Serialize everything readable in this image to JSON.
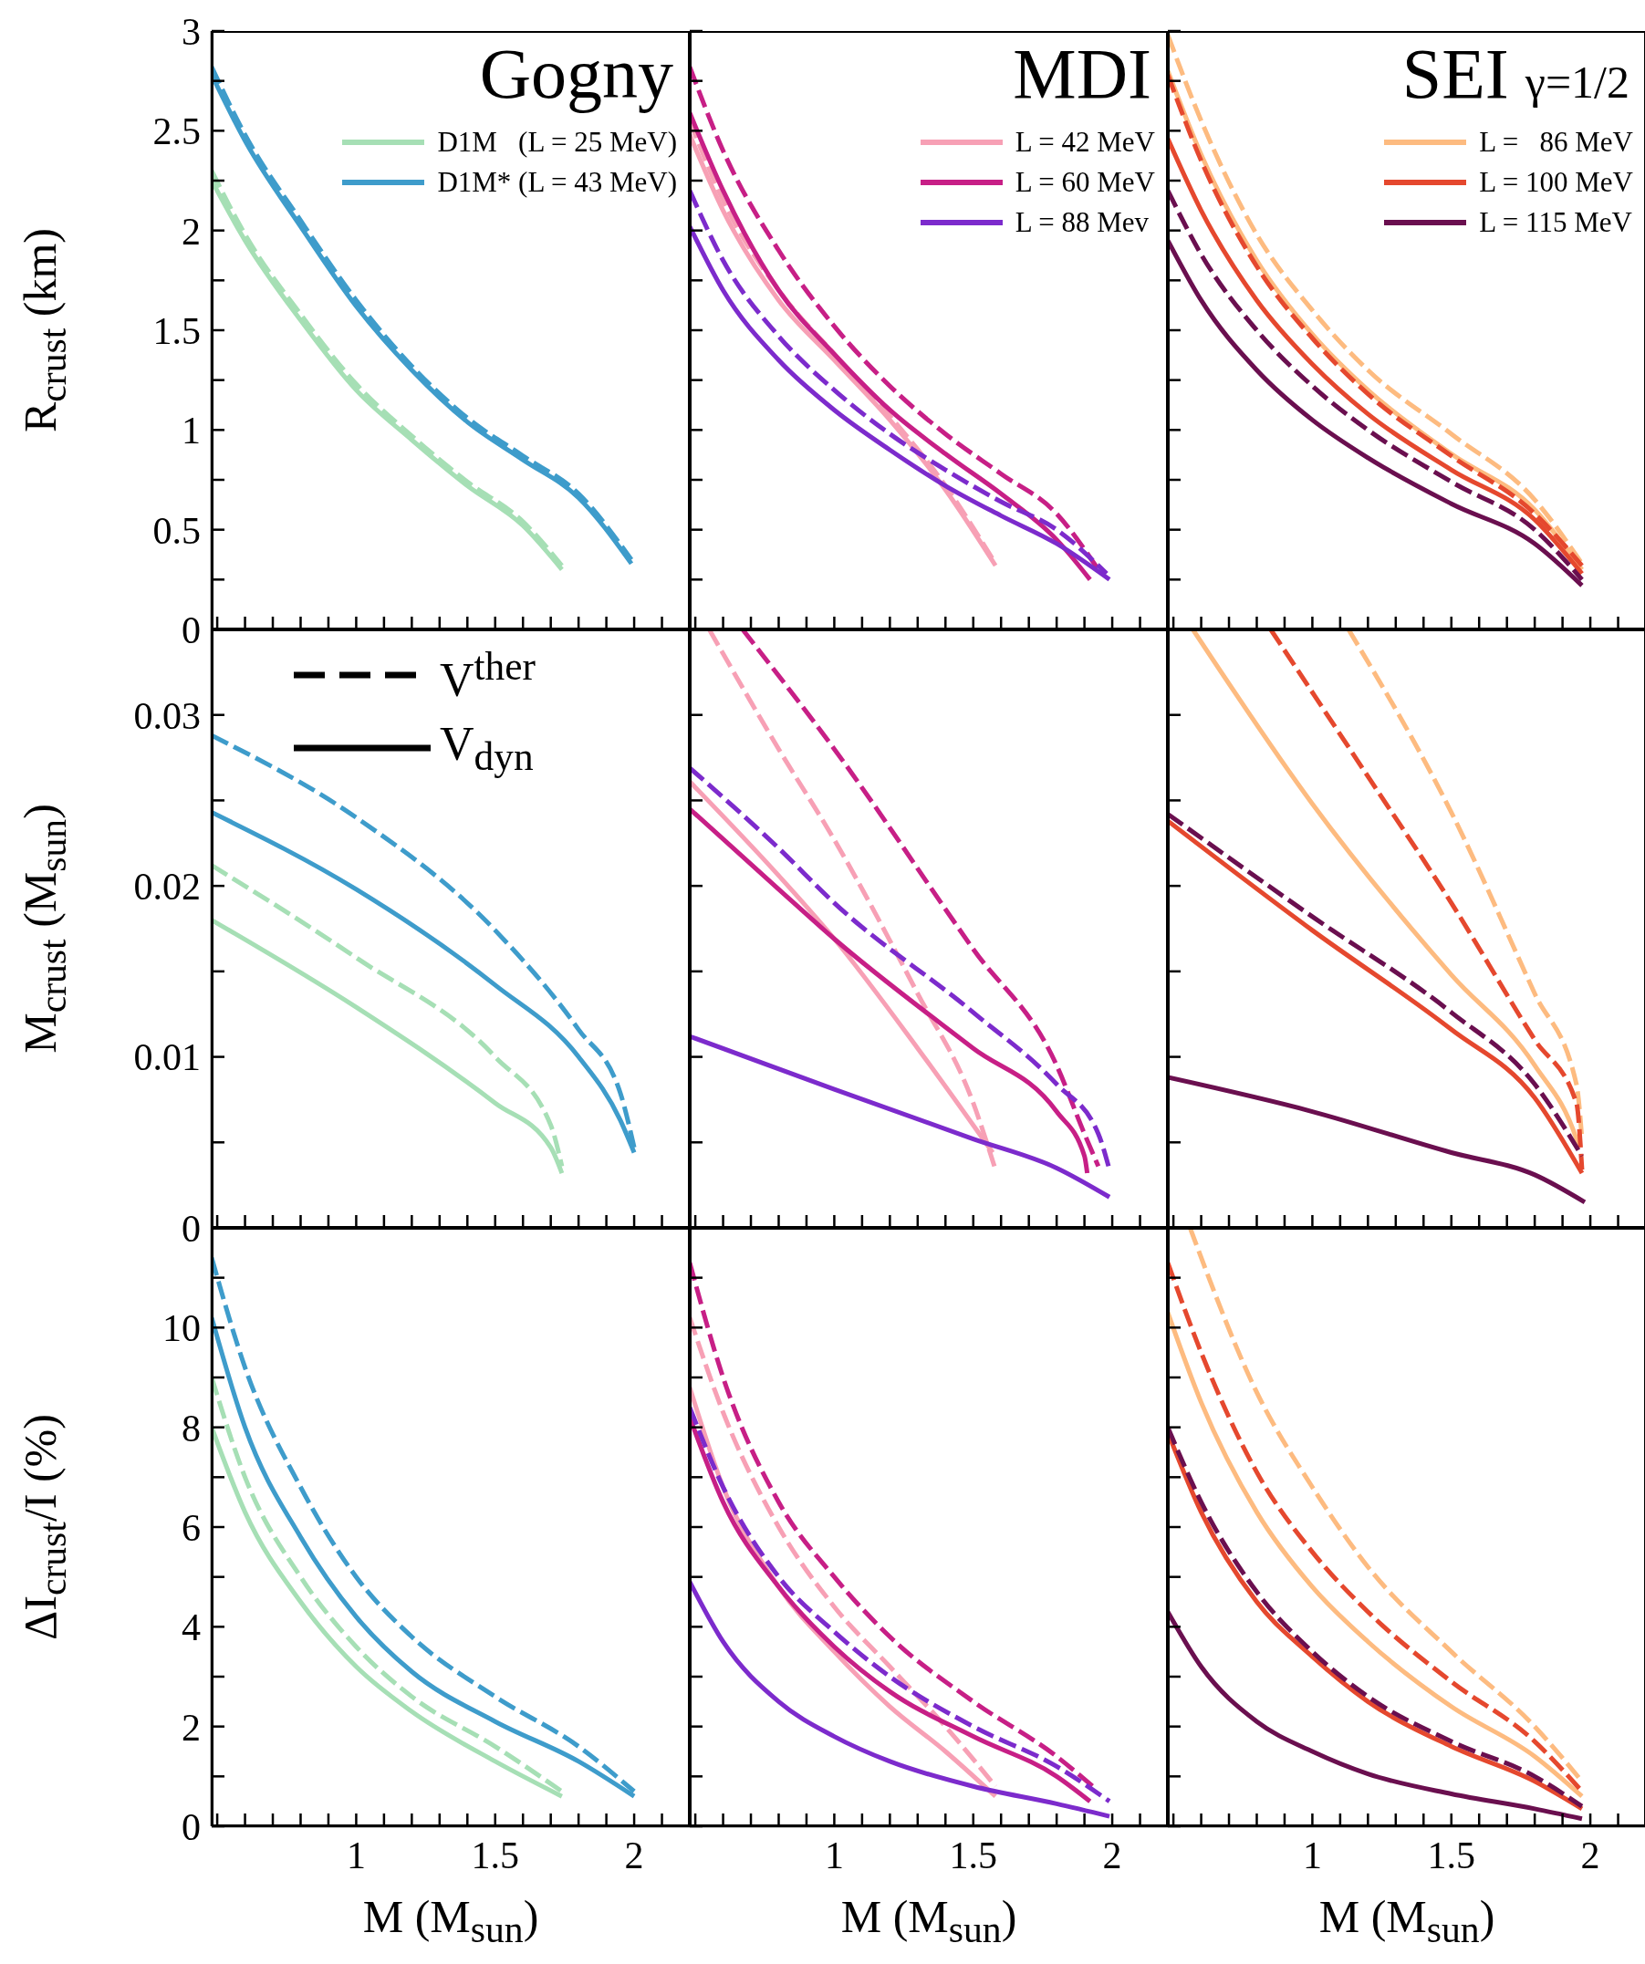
{
  "chart_data": [
    {
      "type": "line",
      "title": "Gogny",
      "ylabel": "R$_{crust}$ (km)",
      "xlim": [
        0.48,
        2.2
      ],
      "xticks": [
        {
          "value": 0.5,
          "label": null
        },
        {
          "value": 0.6,
          "label": null
        },
        {
          "value": 0.7,
          "label": null
        },
        {
          "value": 0.8,
          "label": null
        },
        {
          "value": 0.9,
          "label": null
        },
        1,
        {
          "value": 1.1,
          "label": null
        },
        {
          "value": 1.2,
          "label": null
        },
        {
          "value": 1.3,
          "label": null
        },
        {
          "value": 1.4,
          "label": null
        },
        1.5,
        {
          "value": 1.6,
          "label": null
        },
        {
          "value": 1.7,
          "label": null
        },
        {
          "value": 1.8,
          "label": null
        },
        {
          "value": 1.9,
          "label": null
        },
        2,
        {
          "value": 2.1,
          "label": null
        }
      ],
      "ylim": [
        0,
        3
      ],
      "yticks": [
        0,
        {
          "value": 0.25,
          "label": null
        },
        0.5,
        {
          "value": 0.75,
          "label": null
        },
        1,
        {
          "value": 1.25,
          "label": null
        },
        1.5,
        {
          "value": 1.75,
          "label": null
        },
        2,
        {
          "value": 2.25,
          "label": null
        },
        2.5,
        {
          "value": 2.75,
          "label": null
        },
        3
      ],
      "tick_labels": "y",
      "legend": "top right",
      "series": [
        {
          "name": "D1M   (L = 25 MeV)",
          "color": "#a6dfb5",
          "line_style": "solid",
          "x": [
            0.48,
            0.6,
            0.8,
            1.0,
            1.2,
            1.4,
            1.6,
            1.74
          ],
          "values": [
            2.25,
            1.95,
            1.55,
            1.2,
            0.95,
            0.72,
            0.52,
            0.3
          ]
        },
        {
          "color": "#a6dfb5",
          "line_style": "dashed",
          "x": [
            0.48,
            0.6,
            0.8,
            1.0,
            1.2,
            1.4,
            1.6,
            1.74
          ],
          "values": [
            2.3,
            1.98,
            1.58,
            1.23,
            0.97,
            0.74,
            0.54,
            0.32
          ]
        },
        {
          "name": "D1M* (L = 43 MeV)",
          "color": "#3e9ccb",
          "line_style": "solid",
          "x": [
            0.48,
            0.6,
            0.8,
            1.0,
            1.2,
            1.4,
            1.6,
            1.8,
            1.99
          ],
          "values": [
            2.78,
            2.45,
            2.02,
            1.62,
            1.3,
            1.04,
            0.85,
            0.66,
            0.33
          ]
        },
        {
          "color": "#3e9ccb",
          "line_style": "dashed",
          "x": [
            0.48,
            0.6,
            0.8,
            1.0,
            1.2,
            1.4,
            1.6,
            1.8,
            1.99
          ],
          "values": [
            2.82,
            2.48,
            2.05,
            1.65,
            1.32,
            1.06,
            0.87,
            0.68,
            0.35
          ]
        }
      ]
    },
    {
      "type": "line",
      "title": "MDI",
      "xlim": [
        0.48,
        2.2
      ],
      "xticks": [
        {
          "value": 0.5,
          "label": null
        },
        {
          "value": 0.6,
          "label": null
        },
        {
          "value": 0.7,
          "label": null
        },
        {
          "value": 0.8,
          "label": null
        },
        {
          "value": 0.9,
          "label": null
        },
        1,
        {
          "value": 1.1,
          "label": null
        },
        {
          "value": 1.2,
          "label": null
        },
        {
          "value": 1.3,
          "label": null
        },
        {
          "value": 1.4,
          "label": null
        },
        1.5,
        {
          "value": 1.6,
          "label": null
        },
        {
          "value": 1.7,
          "label": null
        },
        {
          "value": 1.8,
          "label": null
        },
        {
          "value": 1.9,
          "label": null
        },
        2,
        {
          "value": 2.1,
          "label": null
        }
      ],
      "ylim": [
        0,
        3
      ],
      "yticks": [
        0,
        {
          "value": 0.25,
          "label": null
        },
        0.5,
        {
          "value": 0.75,
          "label": null
        },
        1,
        {
          "value": 1.25,
          "label": null
        },
        1.5,
        {
          "value": 1.75,
          "label": null
        },
        2,
        {
          "value": 2.25,
          "label": null
        },
        2.5,
        {
          "value": 2.75,
          "label": null
        },
        3
      ],
      "tick_labels": false,
      "legend": "top right",
      "series": [
        {
          "name": "L = 42 MeV",
          "color": "#f7a0b5",
          "line_style": "solid",
          "x": [
            0.48,
            0.6,
            0.8,
            1.0,
            1.2,
            1.4,
            1.58
          ],
          "values": [
            2.48,
            2.1,
            1.65,
            1.35,
            1.05,
            0.7,
            0.32
          ]
        },
        {
          "color": "#f7a0b5",
          "line_style": "dashed",
          "x": [
            0.48,
            0.6,
            0.8,
            1.0,
            1.2,
            1.4,
            1.58
          ],
          "values": [
            2.55,
            2.15,
            1.7,
            1.38,
            1.07,
            0.72,
            0.33
          ]
        },
        {
          "name": "L = 60 MeV",
          "color": "#c71f86",
          "line_style": "solid",
          "x": [
            0.48,
            0.6,
            0.8,
            1.0,
            1.2,
            1.4,
            1.6,
            1.8,
            1.92
          ],
          "values": [
            2.59,
            2.2,
            1.7,
            1.38,
            1.1,
            0.88,
            0.68,
            0.45,
            0.25
          ]
        },
        {
          "color": "#c71f86",
          "line_style": "dashed",
          "x": [
            0.48,
            0.6,
            0.8,
            1.0,
            1.2,
            1.4,
            1.6,
            1.8,
            1.95
          ],
          "values": [
            2.82,
            2.4,
            1.9,
            1.52,
            1.22,
            0.98,
            0.78,
            0.58,
            0.3
          ]
        },
        {
          "name": "L = 88 Mev",
          "color": "#7c2bcc",
          "line_style": "solid",
          "x": [
            0.48,
            0.6,
            0.8,
            1.0,
            1.2,
            1.4,
            1.6,
            1.8,
            1.99
          ],
          "values": [
            2.02,
            1.7,
            1.35,
            1.1,
            0.9,
            0.72,
            0.57,
            0.43,
            0.25
          ]
        },
        {
          "color": "#7c2bcc",
          "line_style": "dashed",
          "x": [
            0.48,
            0.6,
            0.8,
            1.0,
            1.2,
            1.4,
            1.6,
            1.8,
            1.98
          ],
          "values": [
            2.2,
            1.85,
            1.47,
            1.2,
            0.98,
            0.8,
            0.64,
            0.5,
            0.28
          ]
        }
      ]
    },
    {
      "type": "line",
      "title": "SEI",
      "subtitle": "γ=1/2",
      "xlim": [
        0.48,
        2.2
      ],
      "xticks": [
        {
          "value": 0.5,
          "label": null
        },
        {
          "value": 0.6,
          "label": null
        },
        {
          "value": 0.7,
          "label": null
        },
        {
          "value": 0.8,
          "label": null
        },
        {
          "value": 0.9,
          "label": null
        },
        1,
        {
          "value": 1.1,
          "label": null
        },
        {
          "value": 1.2,
          "label": null
        },
        {
          "value": 1.3,
          "label": null
        },
        {
          "value": 1.4,
          "label": null
        },
        1.5,
        {
          "value": 1.6,
          "label": null
        },
        {
          "value": 1.7,
          "label": null
        },
        {
          "value": 1.8,
          "label": null
        },
        {
          "value": 1.9,
          "label": null
        },
        2,
        {
          "value": 2.1,
          "label": null
        }
      ],
      "ylim": [
        0,
        3
      ],
      "yticks": [
        0,
        {
          "value": 0.25,
          "label": null
        },
        0.5,
        {
          "value": 0.75,
          "label": null
        },
        1,
        {
          "value": 1.25,
          "label": null
        },
        1.5,
        {
          "value": 1.75,
          "label": null
        },
        2,
        {
          "value": 2.25,
          "label": null
        },
        2.5,
        {
          "value": 2.75,
          "label": null
        },
        3
      ],
      "tick_labels": false,
      "legend": "top right",
      "series": [
        {
          "name": "L =   86 MeV",
          "color": "#fdbb80",
          "line_style": "solid",
          "x": [
            0.48,
            0.6,
            0.8,
            1.0,
            1.2,
            1.5,
            1.8,
            1.97
          ],
          "values": [
            2.8,
            2.38,
            1.85,
            1.48,
            1.2,
            0.88,
            0.6,
            0.3
          ]
        },
        {
          "color": "#fdbb80",
          "line_style": "dashed",
          "x": [
            0.48,
            0.6,
            0.8,
            1.0,
            1.2,
            1.5,
            1.8,
            1.97
          ],
          "values": [
            2.98,
            2.55,
            1.98,
            1.6,
            1.3,
            0.98,
            0.65,
            0.33
          ]
        },
        {
          "name": "L = 100 MeV",
          "color": "#e5482e",
          "line_style": "solid",
          "x": [
            0.48,
            0.6,
            0.8,
            1.0,
            1.2,
            1.5,
            1.8,
            1.97
          ],
          "values": [
            2.46,
            2.1,
            1.65,
            1.33,
            1.08,
            0.8,
            0.55,
            0.28
          ]
        },
        {
          "color": "#e5482e",
          "line_style": "dashed",
          "x": [
            0.48,
            0.6,
            0.8,
            1.0,
            1.2,
            1.5,
            1.8,
            1.97
          ],
          "values": [
            2.78,
            2.35,
            1.82,
            1.46,
            1.18,
            0.87,
            0.58,
            0.32
          ]
        },
        {
          "name": "L = 115 MeV",
          "color": "#6a0f4f",
          "line_style": "solid",
          "x": [
            0.48,
            0.6,
            0.8,
            1.0,
            1.2,
            1.5,
            1.8,
            1.97
          ],
          "values": [
            1.95,
            1.65,
            1.3,
            1.05,
            0.86,
            0.63,
            0.43,
            0.22
          ]
        },
        {
          "color": "#6a0f4f",
          "line_style": "dashed",
          "x": [
            0.48,
            0.6,
            0.8,
            1.0,
            1.2,
            1.5,
            1.8,
            1.97
          ],
          "values": [
            2.2,
            1.88,
            1.5,
            1.22,
            1.0,
            0.74,
            0.5,
            0.25
          ]
        }
      ]
    },
    {
      "type": "line",
      "ylabel": "M$_{crust}$ (M$_{sun}$)",
      "annotations": [
        "V$^{ther}$",
        "V$_{dyn}$"
      ],
      "xlim": [
        0.48,
        2.2
      ],
      "xticks": [
        {
          "value": 0.5,
          "label": null
        },
        {
          "value": 0.6,
          "label": null
        },
        {
          "value": 0.7,
          "label": null
        },
        {
          "value": 0.8,
          "label": null
        },
        {
          "value": 0.9,
          "label": null
        },
        1,
        {
          "value": 1.1,
          "label": null
        },
        {
          "value": 1.2,
          "label": null
        },
        {
          "value": 1.3,
          "label": null
        },
        {
          "value": 1.4,
          "label": null
        },
        1.5,
        {
          "value": 1.6,
          "label": null
        },
        {
          "value": 1.7,
          "label": null
        },
        {
          "value": 1.8,
          "label": null
        },
        {
          "value": 1.9,
          "label": null
        },
        2,
        {
          "value": 2.1,
          "label": null
        }
      ],
      "ylim": [
        0,
        0.035
      ],
      "yticks": [
        0,
        {
          "value": 0.005,
          "label": null
        },
        0.01,
        {
          "value": 0.015,
          "label": null
        },
        0.02,
        {
          "value": 0.025,
          "label": null
        },
        0.03
      ],
      "tick_labels": "y",
      "series": [
        {
          "color": "#a6dfb5",
          "line_style": "solid",
          "x": [
            0.48,
            1.0,
            1.5,
            1.7,
            1.74
          ],
          "values": [
            0.018,
            0.0129,
            0.0073,
            0.0047,
            0.0032
          ]
        },
        {
          "color": "#a6dfb5",
          "line_style": "dashed",
          "x": [
            0.48,
            1.0,
            1.5,
            1.7,
            1.74
          ],
          "values": [
            0.0212,
            0.0158,
            0.01,
            0.006,
            0.0036
          ]
        },
        {
          "color": "#3e9ccb",
          "line_style": "solid",
          "x": [
            0.48,
            1.0,
            1.5,
            1.8,
            1.95,
            2.0
          ],
          "values": [
            0.0243,
            0.0198,
            0.0142,
            0.01,
            0.0063,
            0.0044
          ]
        },
        {
          "color": "#3e9ccb",
          "line_style": "dashed",
          "x": [
            0.48,
            1.0,
            1.5,
            1.8,
            1.95,
            2.0
          ],
          "values": [
            0.0288,
            0.024,
            0.0174,
            0.0116,
            0.0079,
            0.0047
          ]
        }
      ]
    },
    {
      "type": "line",
      "xlim": [
        0.48,
        2.2
      ],
      "xticks": [
        {
          "value": 0.5,
          "label": null
        },
        {
          "value": 0.6,
          "label": null
        },
        {
          "value": 0.7,
          "label": null
        },
        {
          "value": 0.8,
          "label": null
        },
        {
          "value": 0.9,
          "label": null
        },
        1,
        {
          "value": 1.1,
          "label": null
        },
        {
          "value": 1.2,
          "label": null
        },
        {
          "value": 1.3,
          "label": null
        },
        {
          "value": 1.4,
          "label": null
        },
        1.5,
        {
          "value": 1.6,
          "label": null
        },
        {
          "value": 1.7,
          "label": null
        },
        {
          "value": 1.8,
          "label": null
        },
        {
          "value": 1.9,
          "label": null
        },
        2,
        {
          "value": 2.1,
          "label": null
        }
      ],
      "ylim": [
        0,
        0.035
      ],
      "yticks": [
        0,
        {
          "value": 0.005,
          "label": null
        },
        0.01,
        {
          "value": 0.015,
          "label": null
        },
        0.02,
        {
          "value": 0.025,
          "label": null
        },
        0.03
      ],
      "tick_labels": false,
      "series": [
        {
          "color": "#f7a0b5",
          "line_style": "solid",
          "x": [
            0.48,
            0.8,
            1.0,
            1.3,
            1.5,
            1.57
          ],
          "values": [
            0.0261,
            0.0206,
            0.0169,
            0.0105,
            0.006,
            0.0044
          ]
        },
        {
          "color": "#f7a0b5",
          "line_style": "dashed",
          "x": [
            0.55,
            0.8,
            1.0,
            1.3,
            1.5,
            1.58
          ],
          "values": [
            0.035,
            0.028,
            0.0227,
            0.0137,
            0.0073,
            0.0034
          ]
        },
        {
          "color": "#c71f86",
          "line_style": "solid",
          "x": [
            0.48,
            0.8,
            1.0,
            1.5,
            1.8,
            1.9,
            1.91
          ],
          "values": [
            0.0245,
            0.0198,
            0.0169,
            0.0105,
            0.0068,
            0.0042,
            0.0032
          ]
        },
        {
          "color": "#c71f86",
          "line_style": "dashed",
          "x": [
            0.67,
            1.0,
            1.5,
            1.8,
            1.9,
            1.95
          ],
          "values": [
            0.035,
            0.028,
            0.0163,
            0.0095,
            0.0055,
            0.0036
          ]
        },
        {
          "color": "#7c2bcc",
          "line_style": "solid",
          "x": [
            0.48,
            1.0,
            1.5,
            1.8,
            1.99
          ],
          "values": [
            0.0112,
            0.0081,
            0.0052,
            0.0035,
            0.0018
          ]
        },
        {
          "color": "#7c2bcc",
          "line_style": "dashed",
          "x": [
            0.48,
            0.8,
            1.0,
            1.5,
            1.8,
            1.95,
            1.99
          ],
          "values": [
            0.0269,
            0.0222,
            0.019,
            0.0126,
            0.0084,
            0.0055,
            0.0034
          ]
        }
      ]
    },
    {
      "type": "line",
      "xlim": [
        0.48,
        2.2
      ],
      "xticks": [
        {
          "value": 0.5,
          "label": null
        },
        {
          "value": 0.6,
          "label": null
        },
        {
          "value": 0.7,
          "label": null
        },
        {
          "value": 0.8,
          "label": null
        },
        {
          "value": 0.9,
          "label": null
        },
        1,
        {
          "value": 1.1,
          "label": null
        },
        {
          "value": 1.2,
          "label": null
        },
        {
          "value": 1.3,
          "label": null
        },
        {
          "value": 1.4,
          "label": null
        },
        1.5,
        {
          "value": 1.6,
          "label": null
        },
        {
          "value": 1.7,
          "label": null
        },
        {
          "value": 1.8,
          "label": null
        },
        {
          "value": 1.9,
          "label": null
        },
        2,
        {
          "value": 2.1,
          "label": null
        }
      ],
      "ylim": [
        0,
        0.035
      ],
      "yticks": [
        0,
        {
          "value": 0.005,
          "label": null
        },
        0.01,
        {
          "value": 0.015,
          "label": null
        },
        0.02,
        {
          "value": 0.025,
          "label": null
        },
        0.03
      ],
      "tick_labels": false,
      "series": [
        {
          "color": "#fdbb80",
          "line_style": "solid",
          "x": [
            0.57,
            1.0,
            1.5,
            1.8,
            1.95,
            1.96
          ],
          "values": [
            0.035,
            0.0248,
            0.0148,
            0.0095,
            0.0052,
            0.0047
          ]
        },
        {
          "color": "#fdbb80",
          "line_style": "dashed",
          "x": [
            1.13,
            1.5,
            1.8,
            1.95,
            1.97
          ],
          "values": [
            0.035,
            0.0243,
            0.0137,
            0.0084,
            0.0052
          ]
        },
        {
          "color": "#e5482e",
          "line_style": "solid",
          "x": [
            0.48,
            1.0,
            1.5,
            1.8,
            1.97
          ],
          "values": [
            0.0238,
            0.0174,
            0.0116,
            0.0076,
            0.0032
          ]
        },
        {
          "color": "#e5482e",
          "line_style": "dashed",
          "x": [
            0.85,
            1.2,
            1.5,
            1.8,
            1.95,
            1.97
          ],
          "values": [
            0.035,
            0.0264,
            0.019,
            0.011,
            0.0073,
            0.0034
          ]
        },
        {
          "color": "#6a0f4f",
          "line_style": "solid",
          "x": [
            0.48,
            1.0,
            1.5,
            1.8,
            1.98
          ],
          "values": [
            0.0088,
            0.0068,
            0.0044,
            0.0031,
            0.0015
          ]
        },
        {
          "color": "#6a0f4f",
          "line_style": "dashed",
          "x": [
            0.48,
            1.0,
            1.5,
            1.8,
            1.97
          ],
          "values": [
            0.0242,
            0.0182,
            0.0126,
            0.0084,
            0.0042
          ]
        }
      ]
    },
    {
      "type": "line",
      "xlabel": "M (M$_{sun}$)",
      "ylabel": "ΔI$_{crust}$/I (%)",
      "xlim": [
        0.48,
        2.2
      ],
      "xticks": [
        {
          "value": 0.5,
          "label": null
        },
        {
          "value": 0.6,
          "label": null
        },
        {
          "value": 0.7,
          "label": null
        },
        {
          "value": 0.8,
          "label": null
        },
        {
          "value": 0.9,
          "label": null
        },
        1,
        {
          "value": 1.1,
          "label": null
        },
        {
          "value": 1.2,
          "label": null
        },
        {
          "value": 1.3,
          "label": null
        },
        {
          "value": 1.4,
          "label": null
        },
        1.5,
        {
          "value": 1.6,
          "label": null
        },
        {
          "value": 1.7,
          "label": null
        },
        {
          "value": 1.8,
          "label": null
        },
        {
          "value": 1.9,
          "label": null
        },
        2,
        {
          "value": 2.1,
          "label": null
        }
      ],
      "ylim": [
        0,
        12
      ],
      "yticks": [
        0,
        {
          "value": 1,
          "label": null
        },
        2,
        {
          "value": 3,
          "label": null
        },
        4,
        {
          "value": 5,
          "label": null
        },
        6,
        {
          "value": 7,
          "label": null
        },
        8,
        {
          "value": 9,
          "label": null
        },
        10,
        {
          "value": 11,
          "label": null
        }
      ],
      "series": [
        {
          "color": "#a6dfb5",
          "line_style": "solid",
          "x": [
            0.48,
            0.6,
            0.8,
            1.0,
            1.2,
            1.5,
            1.74
          ],
          "values": [
            8.0,
            6.3,
            4.5,
            3.2,
            2.3,
            1.3,
            0.6
          ]
        },
        {
          "color": "#a6dfb5",
          "line_style": "dashed",
          "x": [
            0.48,
            0.6,
            0.8,
            1.0,
            1.2,
            1.5,
            1.74
          ],
          "values": [
            9.0,
            7.0,
            5.0,
            3.6,
            2.6,
            1.6,
            0.7
          ]
        },
        {
          "color": "#3e9ccb",
          "line_style": "solid",
          "x": [
            0.48,
            0.6,
            0.8,
            1.0,
            1.2,
            1.5,
            1.8,
            2.0
          ],
          "values": [
            10.2,
            8.0,
            5.8,
            4.2,
            3.1,
            2.1,
            1.3,
            0.6
          ]
        },
        {
          "color": "#3e9ccb",
          "line_style": "dashed",
          "x": [
            0.48,
            0.6,
            0.8,
            1.0,
            1.2,
            1.5,
            1.8,
            2.0
          ],
          "values": [
            11.4,
            9.2,
            6.8,
            5.0,
            3.8,
            2.6,
            1.6,
            0.7
          ]
        }
      ]
    },
    {
      "type": "line",
      "xlabel": "M (M$_{sun}$)",
      "xlim": [
        0.48,
        2.2
      ],
      "xticks": [
        {
          "value": 0.5,
          "label": null
        },
        {
          "value": 0.6,
          "label": null
        },
        {
          "value": 0.7,
          "label": null
        },
        {
          "value": 0.8,
          "label": null
        },
        {
          "value": 0.9,
          "label": null
        },
        1,
        {
          "value": 1.1,
          "label": null
        },
        {
          "value": 1.2,
          "label": null
        },
        {
          "value": 1.3,
          "label": null
        },
        {
          "value": 1.4,
          "label": null
        },
        1.5,
        {
          "value": 1.6,
          "label": null
        },
        {
          "value": 1.7,
          "label": null
        },
        {
          "value": 1.8,
          "label": null
        },
        {
          "value": 1.9,
          "label": null
        },
        2,
        {
          "value": 2.1,
          "label": null
        }
      ],
      "ylim": [
        0,
        12
      ],
      "yticks": [
        0,
        {
          "value": 1,
          "label": null
        },
        2,
        {
          "value": 3,
          "label": null
        },
        4,
        {
          "value": 5,
          "label": null
        },
        6,
        {
          "value": 7,
          "label": null
        },
        8,
        {
          "value": 9,
          "label": null
        },
        10,
        {
          "value": 11,
          "label": null
        }
      ],
      "tick_labels": "x",
      "series": [
        {
          "color": "#f7a0b5",
          "line_style": "solid",
          "x": [
            0.48,
            0.6,
            0.8,
            1.0,
            1.2,
            1.4,
            1.58
          ],
          "values": [
            8.8,
            6.8,
            4.8,
            3.5,
            2.4,
            1.5,
            0.6
          ]
        },
        {
          "color": "#f7a0b5",
          "line_style": "dashed",
          "x": [
            0.48,
            0.6,
            0.8,
            1.0,
            1.2,
            1.4,
            1.58
          ],
          "values": [
            10.2,
            8.3,
            6.0,
            4.4,
            3.2,
            2.0,
            0.8
          ]
        },
        {
          "color": "#c71f86",
          "line_style": "solid",
          "x": [
            0.48,
            0.6,
            0.8,
            1.0,
            1.2,
            1.5,
            1.8,
            1.92
          ],
          "values": [
            8.2,
            6.5,
            4.8,
            3.6,
            2.7,
            1.8,
            1.0,
            0.5
          ]
        },
        {
          "color": "#c71f86",
          "line_style": "dashed",
          "x": [
            0.48,
            0.6,
            0.8,
            1.0,
            1.2,
            1.5,
            1.8,
            1.93
          ],
          "values": [
            11.3,
            9.0,
            6.5,
            5.0,
            3.8,
            2.5,
            1.4,
            0.8
          ]
        },
        {
          "color": "#7c2bcc",
          "line_style": "solid",
          "x": [
            0.48,
            0.6,
            0.8,
            1.0,
            1.2,
            1.5,
            1.8,
            1.99
          ],
          "values": [
            4.9,
            3.7,
            2.5,
            1.8,
            1.3,
            0.8,
            0.45,
            0.2
          ]
        },
        {
          "color": "#7c2bcc",
          "line_style": "dashed",
          "x": [
            0.48,
            0.6,
            0.8,
            1.0,
            1.2,
            1.5,
            1.8,
            1.99
          ],
          "values": [
            8.4,
            6.8,
            5.0,
            3.9,
            3.0,
            2.0,
            1.2,
            0.5
          ]
        }
      ]
    },
    {
      "type": "line",
      "xlabel": "M (M$_{sun}$)",
      "xlim": [
        0.48,
        2.2
      ],
      "xticks": [
        {
          "value": 0.5,
          "label": null
        },
        {
          "value": 0.6,
          "label": null
        },
        {
          "value": 0.7,
          "label": null
        },
        {
          "value": 0.8,
          "label": null
        },
        {
          "value": 0.9,
          "label": null
        },
        1,
        {
          "value": 1.1,
          "label": null
        },
        {
          "value": 1.2,
          "label": null
        },
        {
          "value": 1.3,
          "label": null
        },
        {
          "value": 1.4,
          "label": null
        },
        1.5,
        {
          "value": 1.6,
          "label": null
        },
        {
          "value": 1.7,
          "label": null
        },
        {
          "value": 1.8,
          "label": null
        },
        {
          "value": 1.9,
          "label": null
        },
        2,
        {
          "value": 2.1,
          "label": null
        }
      ],
      "ylim": [
        0,
        12
      ],
      "yticks": [
        0,
        {
          "value": 1,
          "label": null
        },
        2,
        {
          "value": 3,
          "label": null
        },
        4,
        {
          "value": 5,
          "label": null
        },
        6,
        {
          "value": 7,
          "label": null
        },
        8,
        {
          "value": 9,
          "label": null
        },
        10,
        {
          "value": 11,
          "label": null
        }
      ],
      "tick_labels": "x",
      "series": [
        {
          "color": "#fdbb80",
          "line_style": "solid",
          "x": [
            0.48,
            0.6,
            0.8,
            1.0,
            1.2,
            1.5,
            1.8,
            1.97
          ],
          "values": [
            10.3,
            8.5,
            6.3,
            4.8,
            3.7,
            2.4,
            1.4,
            0.6
          ]
        },
        {
          "color": "#fdbb80",
          "line_style": "dashed",
          "x": [
            0.56,
            0.8,
            1.0,
            1.2,
            1.5,
            1.8,
            1.97
          ],
          "values": [
            12,
            8.7,
            6.8,
            5.2,
            3.5,
            2.0,
            0.9
          ]
        },
        {
          "color": "#e5482e",
          "line_style": "solid",
          "x": [
            0.48,
            0.6,
            0.8,
            1.0,
            1.2,
            1.5,
            1.8,
            1.97
          ],
          "values": [
            7.9,
            6.3,
            4.5,
            3.4,
            2.5,
            1.6,
            0.9,
            0.35
          ]
        },
        {
          "color": "#e5482e",
          "line_style": "dashed",
          "x": [
            0.48,
            0.6,
            0.8,
            1.0,
            1.2,
            1.5,
            1.8,
            1.97
          ],
          "values": [
            11.3,
            9.5,
            7.1,
            5.5,
            4.3,
            2.9,
            1.7,
            0.7
          ]
        },
        {
          "color": "#6a0f4f",
          "line_style": "solid",
          "x": [
            0.48,
            0.6,
            0.8,
            1.0,
            1.2,
            1.5,
            1.8,
            1.97
          ],
          "values": [
            4.3,
            3.2,
            2.1,
            1.5,
            1.05,
            0.65,
            0.35,
            0.15
          ]
        },
        {
          "color": "#6a0f4f",
          "line_style": "dashed",
          "x": [
            0.48,
            0.6,
            0.8,
            1.0,
            1.2,
            1.5,
            1.8,
            1.97
          ],
          "values": [
            8.0,
            6.5,
            4.7,
            3.5,
            2.6,
            1.7,
            1.0,
            0.4
          ]
        }
      ]
    }
  ]
}
